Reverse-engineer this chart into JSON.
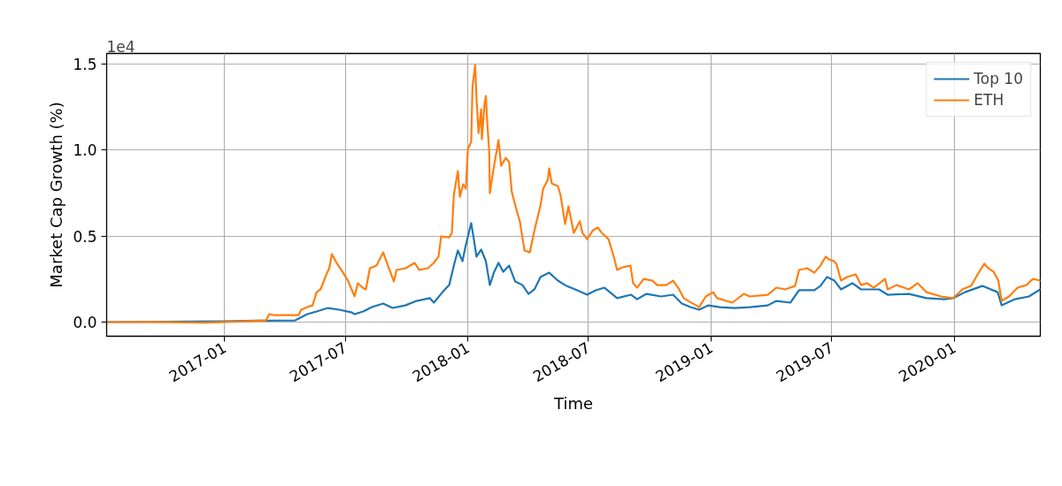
{
  "chart_data": {
    "type": "line",
    "xlabel": "Time",
    "ylabel": "Market Cap Growth (%)",
    "annotations": [
      "1e4"
    ],
    "xlim": [
      "2016-07-08",
      "2020-05-09"
    ],
    "xticks": [
      "2017-01",
      "2017-07",
      "2018-01",
      "2018-07",
      "2019-01",
      "2019-07",
      "2020-01"
    ],
    "ylim": [
      -0.082,
      1.56
    ],
    "yticks": [
      {
        "value": 0,
        "label": "0.0"
      },
      {
        "value": 0.5,
        "label": "0.5"
      },
      {
        "value": 1,
        "label": "1.0"
      },
      {
        "value": 1.5,
        "label": "1.5"
      }
    ],
    "grid": true,
    "legend": "top right",
    "series": [
      {
        "name": "Top 10",
        "color": "#1f77b4",
        "x": [
          "2016-07-08",
          "2016-10-01",
          "2017-01-01",
          "2017-02-15",
          "2017-04-17",
          "2017-05-05",
          "2017-05-19",
          "2017-06-05",
          "2017-06-22",
          "2017-07-11",
          "2017-07-15",
          "2017-07-28",
          "2017-08-10",
          "2017-08-27",
          "2017-09-10",
          "2017-09-29",
          "2017-10-16",
          "2017-11-05",
          "2017-11-11",
          "2017-11-24",
          "2017-12-04",
          "2017-12-12",
          "2017-12-17",
          "2017-12-24",
          "2017-12-28",
          "2018-01-06",
          "2018-01-10",
          "2018-01-14",
          "2018-01-21",
          "2018-01-28",
          "2018-02-03",
          "2018-02-09",
          "2018-02-16",
          "2018-02-23",
          "2018-03-04",
          "2018-03-13",
          "2018-03-24",
          "2018-04-02",
          "2018-04-11",
          "2018-04-20",
          "2018-05-03",
          "2018-05-16",
          "2018-05-29",
          "2018-06-11",
          "2018-06-29",
          "2018-07-12",
          "2018-07-25",
          "2018-08-13",
          "2018-09-03",
          "2018-09-12",
          "2018-09-26",
          "2018-10-18",
          "2018-11-05",
          "2018-11-18",
          "2018-12-01",
          "2018-12-14",
          "2018-12-28",
          "2019-01-14",
          "2019-02-05",
          "2019-02-28",
          "2019-03-27",
          "2019-04-09",
          "2019-04-30",
          "2019-05-13",
          "2019-06-05",
          "2019-06-14",
          "2019-06-24",
          "2019-07-05",
          "2019-07-15",
          "2019-08-01",
          "2019-08-14",
          "2019-09-10",
          "2019-09-23",
          "2019-10-25",
          "2019-11-20",
          "2019-12-17",
          "2019-12-30",
          "2020-01-17",
          "2020-02-12",
          "2020-03-06",
          "2020-03-12",
          "2020-04-01",
          "2020-04-22",
          "2020-05-09"
        ],
        "values": [
          0,
          0.002,
          0.005,
          0.008,
          0.01,
          0.046,
          0.062,
          0.082,
          0.072,
          0.056,
          0.046,
          0.062,
          0.087,
          0.108,
          0.082,
          0.097,
          0.123,
          0.139,
          0.113,
          0.174,
          0.215,
          0.344,
          0.416,
          0.354,
          0.431,
          0.575,
          0.482,
          0.38,
          0.421,
          0.354,
          0.215,
          0.287,
          0.344,
          0.292,
          0.328,
          0.236,
          0.215,
          0.164,
          0.19,
          0.262,
          0.287,
          0.241,
          0.21,
          0.19,
          0.159,
          0.185,
          0.2,
          0.139,
          0.159,
          0.133,
          0.164,
          0.149,
          0.159,
          0.108,
          0.087,
          0.072,
          0.097,
          0.087,
          0.082,
          0.087,
          0.097,
          0.123,
          0.113,
          0.185,
          0.185,
          0.21,
          0.262,
          0.241,
          0.19,
          0.226,
          0.19,
          0.19,
          0.159,
          0.164,
          0.139,
          0.133,
          0.139,
          0.174,
          0.21,
          0.174,
          0.097,
          0.133,
          0.149,
          0.19
        ]
      },
      {
        "name": "ETH",
        "color": "#ff7f0e",
        "x": [
          "2016-07-08",
          "2016-09-15",
          "2016-12-01",
          "2017-01-15",
          "2017-03-04",
          "2017-03-09",
          "2017-03-17",
          "2017-04-22",
          "2017-04-26",
          "2017-05-05",
          "2017-05-13",
          "2017-05-19",
          "2017-05-25",
          "2017-06-01",
          "2017-06-07",
          "2017-06-11",
          "2017-06-18",
          "2017-06-27",
          "2017-07-05",
          "2017-07-15",
          "2017-07-20",
          "2017-07-27",
          "2017-08-01",
          "2017-08-07",
          "2017-08-17",
          "2017-08-27",
          "2017-09-02",
          "2017-09-12",
          "2017-09-16",
          "2017-09-30",
          "2017-10-13",
          "2017-10-20",
          "2017-11-02",
          "2017-11-11",
          "2017-11-18",
          "2017-11-22",
          "2017-12-04",
          "2017-12-08",
          "2017-12-11",
          "2017-12-17",
          "2017-12-20",
          "2017-12-25",
          "2017-12-29",
          "2018-01-01",
          "2018-01-06",
          "2018-01-08",
          "2018-01-12",
          "2018-01-14",
          "2018-01-17",
          "2018-01-21",
          "2018-01-22",
          "2018-01-26",
          "2018-01-28",
          "2018-01-30",
          "2018-02-02",
          "2018-02-03",
          "2018-02-08",
          "2018-02-11",
          "2018-02-16",
          "2018-02-20",
          "2018-02-27",
          "2018-03-04",
          "2018-03-08",
          "2018-03-15",
          "2018-03-20",
          "2018-03-27",
          "2018-04-04",
          "2018-04-11",
          "2018-04-20",
          "2018-04-24",
          "2018-05-01",
          "2018-05-03",
          "2018-05-07",
          "2018-05-16",
          "2018-05-20",
          "2018-05-27",
          "2018-06-01",
          "2018-06-09",
          "2018-06-18",
          "2018-06-22",
          "2018-06-29",
          "2018-07-08",
          "2018-07-15",
          "2018-07-21",
          "2018-07-31",
          "2018-08-08",
          "2018-08-13",
          "2018-08-21",
          "2018-09-02",
          "2018-09-06",
          "2018-09-12",
          "2018-09-22",
          "2018-10-05",
          "2018-10-12",
          "2018-10-26",
          "2018-11-05",
          "2018-11-14",
          "2018-11-21",
          "2018-12-01",
          "2018-12-10",
          "2018-12-14",
          "2018-12-24",
          "2019-01-04",
          "2019-01-10",
          "2019-02-02",
          "2019-02-19",
          "2019-02-28",
          "2019-03-27",
          "2019-04-09",
          "2019-04-22",
          "2019-05-07",
          "2019-05-13",
          "2019-05-25",
          "2019-06-05",
          "2019-06-14",
          "2019-06-22",
          "2019-06-27",
          "2019-07-04",
          "2019-07-08",
          "2019-07-15",
          "2019-07-24",
          "2019-08-06",
          "2019-08-14",
          "2019-08-23",
          "2019-09-02",
          "2019-09-19",
          "2019-09-23",
          "2019-10-06",
          "2019-10-25",
          "2019-11-07",
          "2019-11-20",
          "2019-12-12",
          "2019-12-30",
          "2020-01-13",
          "2020-01-26",
          "2020-02-05",
          "2020-02-15",
          "2020-02-21",
          "2020-02-29",
          "2020-03-07",
          "2020-03-12",
          "2020-03-23",
          "2020-04-05",
          "2020-04-18",
          "2020-04-28",
          "2020-05-09"
        ],
        "values": [
          0,
          0.001,
          -0.003,
          0.002,
          0.01,
          0.046,
          0.04,
          0.04,
          0.072,
          0.087,
          0.097,
          0.174,
          0.19,
          0.26,
          0.313,
          0.395,
          0.344,
          0.292,
          0.241,
          0.15,
          0.226,
          0.2,
          0.19,
          0.313,
          0.328,
          0.405,
          0.339,
          0.236,
          0.303,
          0.313,
          0.344,
          0.303,
          0.313,
          0.344,
          0.38,
          0.498,
          0.492,
          0.518,
          0.739,
          0.877,
          0.728,
          0.8,
          0.775,
          1.005,
          1.047,
          1.37,
          1.493,
          1.303,
          1.098,
          1.236,
          1.062,
          1.267,
          1.313,
          1.165,
          0.995,
          0.749,
          0.877,
          0.944,
          1.057,
          0.908,
          0.954,
          0.929,
          0.754,
          0.652,
          0.585,
          0.416,
          0.405,
          0.534,
          0.677,
          0.775,
          0.826,
          0.893,
          0.805,
          0.79,
          0.739,
          0.569,
          0.672,
          0.518,
          0.585,
          0.518,
          0.482,
          0.534,
          0.549,
          0.518,
          0.482,
          0.38,
          0.303,
          0.318,
          0.328,
          0.226,
          0.2,
          0.251,
          0.241,
          0.215,
          0.215,
          0.241,
          0.19,
          0.139,
          0.115,
          0.097,
          0.087,
          0.149,
          0.174,
          0.139,
          0.113,
          0.164,
          0.149,
          0.159,
          0.2,
          0.19,
          0.21,
          0.303,
          0.313,
          0.287,
          0.328,
          0.38,
          0.364,
          0.354,
          0.339,
          0.241,
          0.262,
          0.277,
          0.215,
          0.226,
          0.2,
          0.251,
          0.19,
          0.215,
          0.19,
          0.226,
          0.174,
          0.149,
          0.139,
          0.19,
          0.21,
          0.277,
          0.339,
          0.313,
          0.292,
          0.241,
          0.123,
          0.149,
          0.2,
          0.215,
          0.251,
          0.241
        ]
      }
    ]
  }
}
